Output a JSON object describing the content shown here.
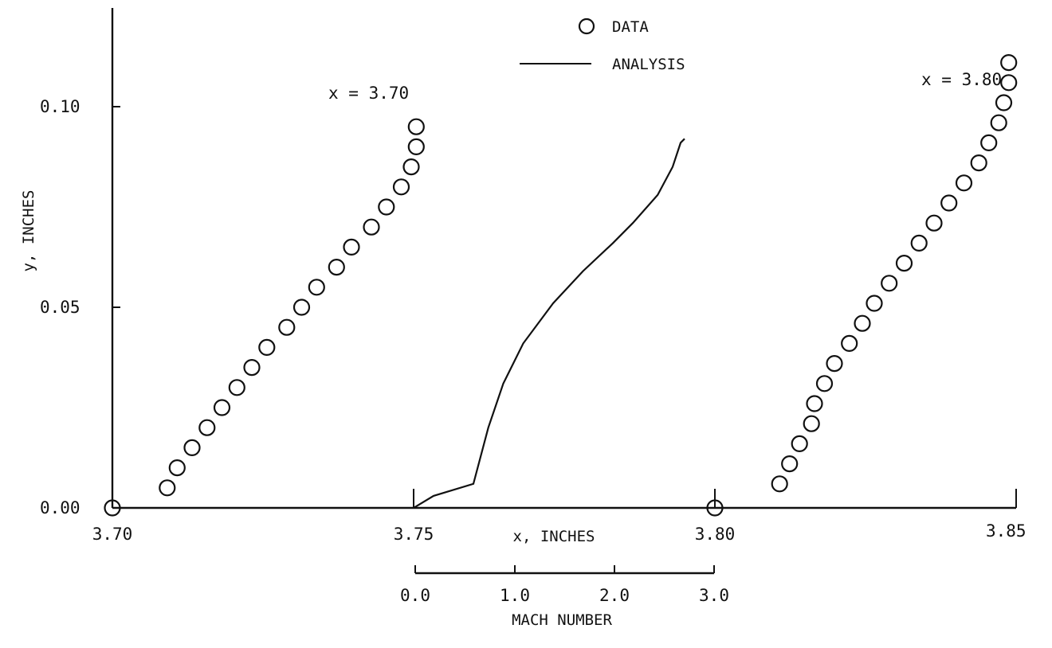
{
  "chart_data": {
    "type": "scatter",
    "title": "",
    "xlabel": "x,  INCHES",
    "ylabel": "y,  INCHES",
    "xlim": [
      3.7,
      3.85
    ],
    "ylim": [
      0.0,
      0.12
    ],
    "x_ticks": [
      "3.70",
      "3.75",
      "3.80",
      "3.85"
    ],
    "y_ticks": [
      "0.00",
      "0.05",
      "0.10"
    ],
    "secondary_axis": {
      "label": "MACH  NUMBER",
      "ticks": [
        "0.0",
        "1.0",
        "2.0",
        "3.0"
      ],
      "range": [
        0.0,
        3.0
      ]
    },
    "legend": {
      "placement": "top-center",
      "entries": [
        {
          "marker": "circle",
          "label": "DATA"
        },
        {
          "marker": "line",
          "label": "ANALYSIS"
        }
      ]
    },
    "annotations": [
      "x = 3.70",
      "x = 3.80"
    ],
    "series": [
      {
        "name": "DATA",
        "station": "x = 3.70",
        "mach": [
          0.0,
          0.55,
          0.65,
          0.8,
          0.95,
          1.1,
          1.25,
          1.4,
          1.55,
          1.75,
          1.9,
          2.05,
          2.25,
          2.4,
          2.6,
          2.75,
          2.9,
          3.0,
          3.05,
          3.05
        ],
        "y": [
          0.0,
          0.005,
          0.01,
          0.015,
          0.02,
          0.025,
          0.03,
          0.035,
          0.04,
          0.045,
          0.05,
          0.055,
          0.06,
          0.065,
          0.07,
          0.075,
          0.08,
          0.085,
          0.09,
          0.095
        ]
      },
      {
        "name": "DATA",
        "station": "x = 3.80",
        "mach": [
          0.0,
          0.65,
          0.75,
          0.85,
          0.97,
          1.0,
          1.1,
          1.2,
          1.35,
          1.48,
          1.6,
          1.75,
          1.9,
          2.05,
          2.2,
          2.35,
          2.5,
          2.65,
          2.75,
          2.85,
          2.9,
          2.95,
          2.95
        ],
        "y": [
          0.0,
          0.006,
          0.011,
          0.016,
          0.021,
          0.026,
          0.031,
          0.036,
          0.041,
          0.046,
          0.051,
          0.056,
          0.061,
          0.066,
          0.071,
          0.076,
          0.081,
          0.086,
          0.091,
          0.096,
          0.101,
          0.106,
          0.111
        ]
      },
      {
        "name": "ANALYSIS",
        "station": "x = 3.75",
        "mach": [
          0.0,
          0.2,
          0.6,
          0.75,
          0.9,
          1.1,
          1.4,
          1.7,
          2.0,
          2.2,
          2.45,
          2.6,
          2.68,
          2.72
        ],
        "y": [
          0.0,
          0.003,
          0.006,
          0.02,
          0.031,
          0.041,
          0.051,
          0.059,
          0.066,
          0.071,
          0.078,
          0.085,
          0.091,
          0.092
        ]
      }
    ]
  }
}
